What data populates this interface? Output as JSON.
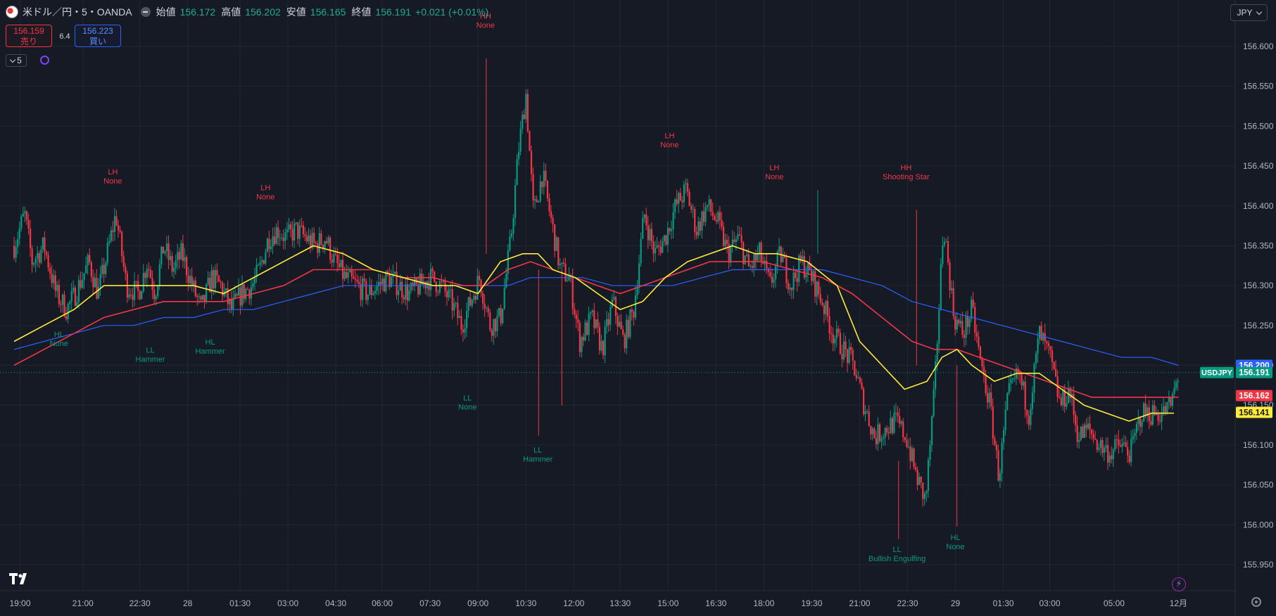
{
  "header": {
    "symbol": "米ドル／円・5・OANDA",
    "open_label": "始値",
    "open": "156.172",
    "high_label": "高値",
    "high": "156.202",
    "low_label": "安値",
    "low": "156.165",
    "close_label": "終値",
    "close": "156.191",
    "change": "+0.021 (+0.01%)"
  },
  "trade": {
    "sell_price": "156.159",
    "sell_label": "売り",
    "spread": "6.4",
    "buy_price": "156.223",
    "buy_label": "買い"
  },
  "interval": "5",
  "currency": "JPY",
  "icons": {
    "flag": "us-jp-flag-icon",
    "hide": "minus-icon",
    "sync": "sync-icon",
    "logo": "tradingview-logo-icon",
    "bolt": "lightning-icon",
    "gear": "gear-icon",
    "chevron": "chevron-down-icon"
  },
  "colors": {
    "background": "#161a25",
    "grid": "#232632",
    "up": "#089981",
    "down": "#f23645",
    "ma_yellow": "#ffeb3b",
    "ma_red": "#f23645",
    "ma_blue": "#2962ff",
    "label_red": "#f23645",
    "label_green": "#089981"
  },
  "chart_data": {
    "type": "candlestick",
    "symbol": "USDJPY",
    "ylim": [
      155.92,
      156.64
    ],
    "y_ticks": [
      "156.600",
      "156.550",
      "156.500",
      "156.450",
      "156.400",
      "156.350",
      "156.300",
      "156.250",
      "156.200",
      "156.150",
      "156.100",
      "156.050",
      "156.000",
      "155.950"
    ],
    "x_ticks": [
      "19:00",
      "21:00",
      "22:30",
      "28",
      "01:30",
      "03:00",
      "04:30",
      "06:00",
      "07:30",
      "09:00",
      "10:30",
      "12:00",
      "13:30",
      "15:00",
      "16:30",
      "18:00",
      "19:30",
      "21:00",
      "22:30",
      "29",
      "01:30",
      "03:00",
      "05:00",
      "12月"
    ],
    "x_tick_pos": [
      0.4,
      4.6,
      8.4,
      11.6,
      15.1,
      18.3,
      21.5,
      24.6,
      27.8,
      31.0,
      34.2,
      37.4,
      40.5,
      43.7,
      46.9,
      50.1,
      53.3,
      56.5,
      59.7,
      62.9,
      66.1,
      69.2,
      73.5,
      77.8
    ],
    "x_range": [
      0,
      80.5
    ],
    "price_path": [
      [
        0,
        156.35
      ],
      [
        0.7,
        156.39
      ],
      [
        1.2,
        156.33
      ],
      [
        2,
        156.35
      ],
      [
        2.8,
        156.29
      ],
      [
        3.5,
        156.27
      ],
      [
        4.1,
        156.29
      ],
      [
        5,
        156.33
      ],
      [
        5.6,
        156.29
      ],
      [
        6.1,
        156.33
      ],
      [
        6.8,
        156.39
      ],
      [
        7.5,
        156.3
      ],
      [
        8.3,
        156.29
      ],
      [
        8.9,
        156.33
      ],
      [
        9.4,
        156.29
      ],
      [
        10,
        156.35
      ],
      [
        10.6,
        156.32
      ],
      [
        11.2,
        156.34
      ],
      [
        11.9,
        156.3
      ],
      [
        12.5,
        156.27
      ],
      [
        13.2,
        156.31
      ],
      [
        13.8,
        156.3
      ],
      [
        14.5,
        156.27
      ],
      [
        15.2,
        156.29
      ],
      [
        15.9,
        156.3
      ],
      [
        16.4,
        156.32
      ],
      [
        17,
        156.36
      ],
      [
        17.6,
        156.37
      ],
      [
        18.2,
        156.36
      ],
      [
        18.8,
        156.37
      ],
      [
        19.5,
        156.36
      ],
      [
        20.1,
        156.35
      ],
      [
        20.8,
        156.36
      ],
      [
        21.4,
        156.33
      ],
      [
        22.1,
        156.31
      ],
      [
        22.9,
        156.3
      ],
      [
        23.6,
        156.29
      ],
      [
        24.3,
        156.3
      ],
      [
        25,
        156.31
      ],
      [
        25.7,
        156.3
      ],
      [
        26.4,
        156.29
      ],
      [
        27.1,
        156.3
      ],
      [
        27.8,
        156.31
      ],
      [
        28.5,
        156.3
      ],
      [
        29.2,
        156.28
      ],
      [
        29.9,
        156.25
      ],
      [
        30.5,
        156.28
      ],
      [
        31.1,
        156.31
      ],
      [
        31.8,
        156.25
      ],
      [
        32.5,
        156.26
      ],
      [
        33.2,
        156.36
      ],
      [
        33.7,
        156.47
      ],
      [
        34.2,
        156.54
      ],
      [
        34.7,
        156.39
      ],
      [
        35.3,
        156.44
      ],
      [
        35.9,
        156.38
      ],
      [
        36.5,
        156.32
      ],
      [
        37.1,
        156.31
      ],
      [
        37.8,
        156.23
      ],
      [
        38.6,
        156.26
      ],
      [
        39.3,
        156.22
      ],
      [
        40,
        156.28
      ],
      [
        40.7,
        156.23
      ],
      [
        41.4,
        156.27
      ],
      [
        42.1,
        156.39
      ],
      [
        42.8,
        156.34
      ],
      [
        43.5,
        156.36
      ],
      [
        44.2,
        156.4
      ],
      [
        44.9,
        156.42
      ],
      [
        45.6,
        156.37
      ],
      [
        46.3,
        156.4
      ],
      [
        47,
        156.38
      ],
      [
        47.7,
        156.34
      ],
      [
        48.4,
        156.36
      ],
      [
        49.1,
        156.32
      ],
      [
        49.8,
        156.34
      ],
      [
        50.5,
        156.3
      ],
      [
        51.2,
        156.34
      ],
      [
        51.9,
        156.3
      ],
      [
        52.6,
        156.33
      ],
      [
        53.3,
        156.31
      ],
      [
        54,
        156.28
      ],
      [
        54.7,
        156.24
      ],
      [
        55.4,
        156.22
      ],
      [
        56.1,
        156.2
      ],
      [
        56.8,
        156.15
      ],
      [
        57.5,
        156.11
      ],
      [
        58.2,
        156.12
      ],
      [
        58.9,
        156.13
      ],
      [
        59.6,
        156.11
      ],
      [
        60.3,
        156.06
      ],
      [
        60.9,
        156.03
      ],
      [
        61.5,
        156.17
      ],
      [
        62.1,
        156.38
      ],
      [
        62.8,
        156.26
      ],
      [
        63.4,
        156.24
      ],
      [
        64,
        156.27
      ],
      [
        64.6,
        156.2
      ],
      [
        65.2,
        156.15
      ],
      [
        65.8,
        156.06
      ],
      [
        66.4,
        156.16
      ],
      [
        67.1,
        156.19
      ],
      [
        67.8,
        156.14
      ],
      [
        68.5,
        156.24
      ],
      [
        69.2,
        156.21
      ],
      [
        69.9,
        156.15
      ],
      [
        70.5,
        156.17
      ],
      [
        71.1,
        156.11
      ],
      [
        71.8,
        156.12
      ],
      [
        72.5,
        156.1
      ],
      [
        73.2,
        156.09
      ],
      [
        73.9,
        156.1
      ],
      [
        74.6,
        156.09
      ],
      [
        75.3,
        156.14
      ],
      [
        76,
        156.14
      ],
      [
        76.7,
        156.14
      ],
      [
        77.3,
        156.15
      ],
      [
        77.8,
        156.19
      ]
    ],
    "sma_yellow": [
      [
        0,
        156.23
      ],
      [
        2,
        156.25
      ],
      [
        4,
        156.27
      ],
      [
        6,
        156.3
      ],
      [
        8,
        156.3
      ],
      [
        10,
        156.3
      ],
      [
        12,
        156.3
      ],
      [
        14,
        156.29
      ],
      [
        16,
        156.31
      ],
      [
        18,
        156.33
      ],
      [
        20,
        156.35
      ],
      [
        22,
        156.34
      ],
      [
        24,
        156.32
      ],
      [
        26,
        156.31
      ],
      [
        28,
        156.3
      ],
      [
        29.5,
        156.3
      ],
      [
        31,
        156.29
      ],
      [
        32.5,
        156.33
      ],
      [
        34,
        156.34
      ],
      [
        35,
        156.34
      ],
      [
        36,
        156.32
      ],
      [
        37.5,
        156.31
      ],
      [
        39,
        156.29
      ],
      [
        40.5,
        156.27
      ],
      [
        42,
        156.28
      ],
      [
        43.5,
        156.31
      ],
      [
        45,
        156.33
      ],
      [
        46.5,
        156.34
      ],
      [
        48,
        156.35
      ],
      [
        49.5,
        156.34
      ],
      [
        51,
        156.34
      ],
      [
        53,
        156.33
      ],
      [
        55,
        156.3
      ],
      [
        56.5,
        156.23
      ],
      [
        58,
        156.2
      ],
      [
        59.5,
        156.17
      ],
      [
        61,
        156.18
      ],
      [
        62,
        156.21
      ],
      [
        63,
        156.22
      ],
      [
        64,
        156.2
      ],
      [
        65.5,
        156.18
      ],
      [
        67,
        156.19
      ],
      [
        68.5,
        156.19
      ],
      [
        70,
        156.17
      ],
      [
        71.5,
        156.15
      ],
      [
        73,
        156.14
      ],
      [
        74.5,
        156.13
      ],
      [
        76,
        156.14
      ],
      [
        77.5,
        156.14
      ]
    ],
    "sma_red": [
      [
        0,
        156.2
      ],
      [
        2,
        156.22
      ],
      [
        4,
        156.24
      ],
      [
        6,
        156.26
      ],
      [
        8,
        156.27
      ],
      [
        10,
        156.28
      ],
      [
        12,
        156.28
      ],
      [
        14,
        156.28
      ],
      [
        16,
        156.29
      ],
      [
        18,
        156.3
      ],
      [
        20,
        156.32
      ],
      [
        22,
        156.32
      ],
      [
        24,
        156.32
      ],
      [
        26,
        156.31
      ],
      [
        28,
        156.31
      ],
      [
        30,
        156.3
      ],
      [
        31.5,
        156.3
      ],
      [
        33,
        156.32
      ],
      [
        34.5,
        156.33
      ],
      [
        36,
        156.32
      ],
      [
        37.5,
        156.31
      ],
      [
        39,
        156.3
      ],
      [
        40.5,
        156.29
      ],
      [
        42,
        156.3
      ],
      [
        43.5,
        156.31
      ],
      [
        45,
        156.32
      ],
      [
        46.5,
        156.33
      ],
      [
        48,
        156.33
      ],
      [
        50,
        156.33
      ],
      [
        52,
        156.32
      ],
      [
        54,
        156.31
      ],
      [
        56,
        156.29
      ],
      [
        58,
        156.26
      ],
      [
        60,
        156.23
      ],
      [
        61.5,
        156.22
      ],
      [
        63,
        156.22
      ],
      [
        64.5,
        156.21
      ],
      [
        66,
        156.2
      ],
      [
        67.5,
        156.19
      ],
      [
        69,
        156.18
      ],
      [
        70.5,
        156.17
      ],
      [
        72,
        156.16
      ],
      [
        73.5,
        156.16
      ],
      [
        75,
        156.16
      ],
      [
        76.5,
        156.16
      ],
      [
        77.8,
        156.16
      ]
    ],
    "sma_blue": [
      [
        0,
        156.22
      ],
      [
        2,
        156.23
      ],
      [
        4,
        156.24
      ],
      [
        6,
        156.25
      ],
      [
        8,
        156.25
      ],
      [
        10,
        156.26
      ],
      [
        12,
        156.26
      ],
      [
        14,
        156.27
      ],
      [
        16,
        156.27
      ],
      [
        18,
        156.28
      ],
      [
        20,
        156.29
      ],
      [
        22,
        156.3
      ],
      [
        24,
        156.3
      ],
      [
        26,
        156.3
      ],
      [
        28,
        156.3
      ],
      [
        30,
        156.3
      ],
      [
        31.5,
        156.3
      ],
      [
        33,
        156.3
      ],
      [
        34.5,
        156.31
      ],
      [
        36,
        156.31
      ],
      [
        38,
        156.31
      ],
      [
        40,
        156.3
      ],
      [
        42,
        156.3
      ],
      [
        44,
        156.3
      ],
      [
        46,
        156.31
      ],
      [
        48,
        156.32
      ],
      [
        50,
        156.32
      ],
      [
        52,
        156.32
      ],
      [
        54,
        156.32
      ],
      [
        56,
        156.31
      ],
      [
        58,
        156.3
      ],
      [
        60,
        156.28
      ],
      [
        62,
        156.27
      ],
      [
        64,
        156.26
      ],
      [
        66,
        156.25
      ],
      [
        68,
        156.24
      ],
      [
        70,
        156.23
      ],
      [
        72,
        156.22
      ],
      [
        74,
        156.21
      ],
      [
        76,
        156.21
      ],
      [
        77.8,
        156.2
      ]
    ],
    "swing_labels": [
      {
        "x": 3.0,
        "price": 156.25,
        "text1": "HL",
        "text2": "None",
        "color": "green",
        "pos": "below"
      },
      {
        "x": 6.6,
        "price": 156.415,
        "text1": "LH",
        "text2": "None",
        "color": "red",
        "pos": "above"
      },
      {
        "x": 9.1,
        "price": 156.23,
        "text1": "LL",
        "text2": "Hammer",
        "color": "green",
        "pos": "below"
      },
      {
        "x": 13.1,
        "price": 156.24,
        "text1": "HL",
        "text2": "Hammer",
        "color": "green",
        "pos": "below"
      },
      {
        "x": 16.8,
        "price": 156.395,
        "text1": "LH",
        "text2": "None",
        "color": "red",
        "pos": "above"
      },
      {
        "x": 30.3,
        "price": 156.17,
        "text1": "LL",
        "text2": "None",
        "color": "green",
        "pos": "below"
      },
      {
        "x": 31.5,
        "price": 156.61,
        "text1": "HH",
        "text2": "None",
        "color": "red",
        "pos": "above"
      },
      {
        "x": 35.0,
        "price": 156.105,
        "text1": "LL",
        "text2": "Hammer",
        "color": "green",
        "pos": "below"
      },
      {
        "x": 43.8,
        "price": 156.46,
        "text1": "LH",
        "text2": "None",
        "color": "red",
        "pos": "above"
      },
      {
        "x": 50.8,
        "price": 156.42,
        "text1": "LH",
        "text2": "None",
        "color": "red",
        "pos": "above"
      },
      {
        "x": 59.6,
        "price": 156.42,
        "text1": "HH",
        "text2": "Shooting Star",
        "color": "red",
        "pos": "above"
      },
      {
        "x": 59.0,
        "price": 155.98,
        "text1": "LL",
        "text2": "Bullish Engulfing",
        "color": "green",
        "pos": "below"
      },
      {
        "x": 62.9,
        "price": 155.995,
        "text1": "HL",
        "text2": "None",
        "color": "green",
        "pos": "below"
      }
    ],
    "price_tags": [
      {
        "price": 156.2,
        "text": "156.200",
        "color": "#2962ff",
        "label": ""
      },
      {
        "price": 156.191,
        "text": "156.191",
        "color": "#089981",
        "label": "USDJPY"
      },
      {
        "price": 156.162,
        "text": "156.162",
        "color": "#f23645",
        "label": ""
      },
      {
        "price": 156.141,
        "text": "156.141",
        "color": "#ffeb3b",
        "label": ""
      }
    ]
  }
}
